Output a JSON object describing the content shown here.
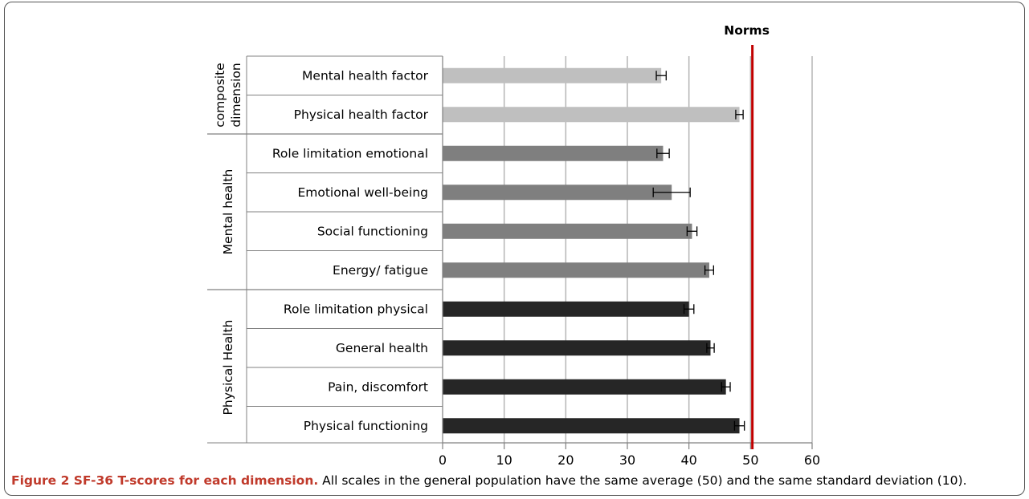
{
  "chart_data": {
    "type": "bar",
    "orientation": "horizontal",
    "reference_line": {
      "label": "Norms",
      "value": 50.3,
      "color": "#c00000"
    },
    "xlim": [
      0,
      60
    ],
    "xticks": [
      0,
      10,
      20,
      30,
      40,
      50,
      60
    ],
    "grid": true,
    "groups": [
      {
        "label": "composite dimension",
        "label_lines": [
          "composite",
          "dimension"
        ],
        "color": "#bfbfbf",
        "items": [
          {
            "label": "Mental health factor",
            "value": 35.5,
            "error": 0.8
          },
          {
            "label": "Physical health factor",
            "value": 48.2,
            "error": 0.6
          }
        ]
      },
      {
        "label": "Mental health",
        "label_lines": [
          "Mental health"
        ],
        "color": "#7f7f7f",
        "items": [
          {
            "label": "Role limitation emotional",
            "value": 35.8,
            "error": 1.0
          },
          {
            "label": "Emotional well-being",
            "value": 37.2,
            "error": 3.0
          },
          {
            "label": "Social functioning",
            "value": 40.5,
            "error": 0.8
          },
          {
            "label": "Energy/ fatigue",
            "value": 43.3,
            "error": 0.7
          }
        ]
      },
      {
        "label": "Physical Health",
        "label_lines": [
          "Physical Health"
        ],
        "color": "#262626",
        "items": [
          {
            "label": "Role limitation physical",
            "value": 40.0,
            "error": 0.8
          },
          {
            "label": "General health",
            "value": 43.5,
            "error": 0.6
          },
          {
            "label": "Pain, discomfort",
            "value": 46.0,
            "error": 0.7
          },
          {
            "label": "Physical functioning",
            "value": 48.2,
            "error": 0.8
          }
        ]
      }
    ]
  },
  "caption": {
    "lead": "Figure 2 SF-36 T-scores for each dimension.",
    "text": " All scales in the general population have the same average (50) and the same standard deviation (10)."
  }
}
